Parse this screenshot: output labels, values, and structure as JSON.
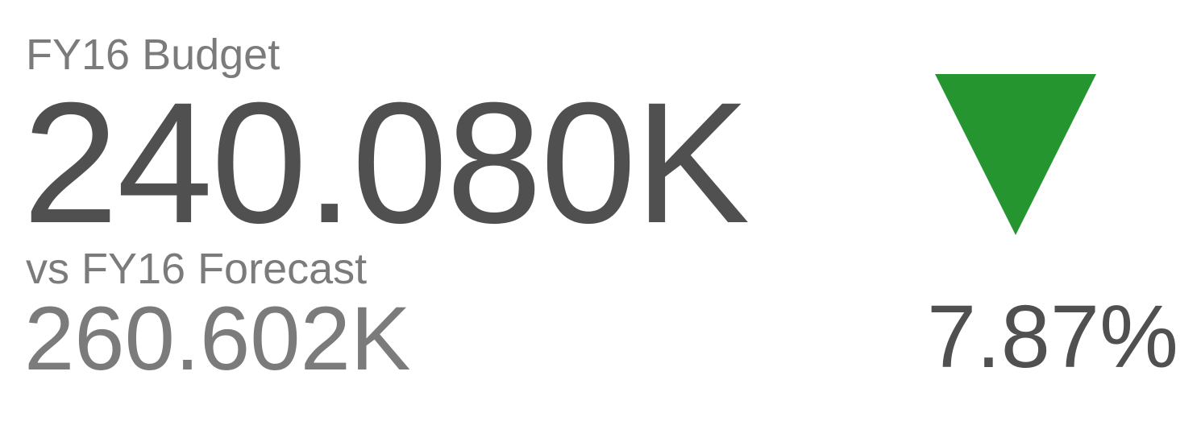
{
  "kpi": {
    "primary_label": "FY16 Budget",
    "primary_value": "240.080K",
    "compare_label": "vs FY16 Forecast",
    "compare_value": "260.602K",
    "variance": "7.87%",
    "trend_direction": "down",
    "trend_icon": "down-triangle-icon"
  },
  "colors": {
    "trend_indicator": "#259530",
    "primary_text": "#505050",
    "secondary_text": "#7b7b7b"
  }
}
